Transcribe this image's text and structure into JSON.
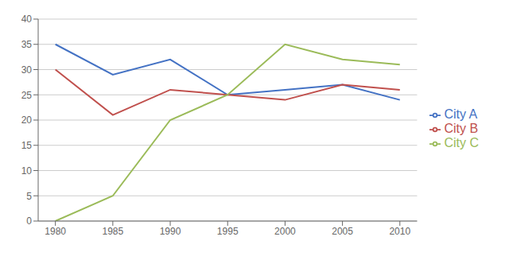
{
  "chart_data": {
    "type": "line",
    "x": [
      1980,
      1985,
      1990,
      1995,
      2000,
      2005,
      2010
    ],
    "series": [
      {
        "name": "City A",
        "color": "#4472C4",
        "values": [
          35,
          29,
          32,
          25,
          26,
          27,
          24
        ]
      },
      {
        "name": "City B",
        "color": "#C0504D",
        "values": [
          30,
          21,
          26,
          25,
          24,
          27,
          26
        ]
      },
      {
        "name": "City C",
        "color": "#9BBB59",
        "values": [
          0,
          5,
          20,
          25,
          35,
          32,
          31
        ]
      }
    ],
    "xlim": [
      1978.5,
      2011.5
    ],
    "xticks": [
      1980,
      1985,
      1990,
      1995,
      2000,
      2005,
      2010
    ],
    "ylim": [
      0,
      40
    ],
    "yticks": [
      0,
      5,
      10,
      15,
      20,
      25,
      30,
      35,
      40
    ],
    "grid": true,
    "legend": "right"
  }
}
